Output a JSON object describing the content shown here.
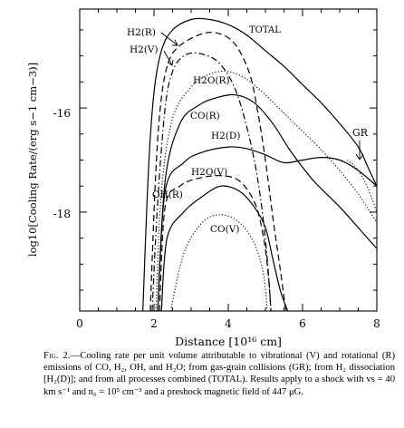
{
  "chart_data": {
    "type": "line",
    "ylabel": "log10[Cooling Rate/(erg s−1 cm−3)]",
    "xlabel": "Distance [10¹⁶ cm]",
    "xlim": [
      0,
      8
    ],
    "ylim": [
      -19.9,
      -14.1
    ],
    "x_ticks": [
      0,
      2,
      4,
      6,
      8
    ],
    "y_ticks": [
      -16,
      -18
    ],
    "x_tick_labels": [
      "0",
      "2",
      "4",
      "6",
      "8"
    ],
    "y_tick_labels": [
      "-16",
      "-18"
    ],
    "series": [
      {
        "name": "TOTAL",
        "style": "solid",
        "points": [
          [
            1.7,
            -19.9
          ],
          [
            1.85,
            -17.2
          ],
          [
            2.0,
            -15.7
          ],
          [
            2.2,
            -14.9
          ],
          [
            2.5,
            -14.5
          ],
          [
            3.0,
            -14.3
          ],
          [
            3.5,
            -14.3
          ],
          [
            4.0,
            -14.4
          ],
          [
            4.5,
            -14.6
          ],
          [
            5.0,
            -14.9
          ],
          [
            5.5,
            -15.2
          ],
          [
            6.0,
            -15.55
          ],
          [
            6.5,
            -15.9
          ],
          [
            7.0,
            -16.3
          ],
          [
            7.5,
            -16.75
          ],
          [
            7.8,
            -17.2
          ],
          [
            8.0,
            -17.5
          ]
        ]
      },
      {
        "name": "H2(R)",
        "style": "dashed",
        "points": [
          [
            1.9,
            -19.9
          ],
          [
            2.05,
            -17.2
          ],
          [
            2.2,
            -15.8
          ],
          [
            2.4,
            -15.1
          ],
          [
            2.7,
            -14.8
          ],
          [
            3.2,
            -14.6
          ],
          [
            3.6,
            -14.55
          ],
          [
            4.0,
            -14.65
          ],
          [
            4.3,
            -14.9
          ],
          [
            4.6,
            -15.4
          ],
          [
            4.8,
            -16.1
          ],
          [
            5.0,
            -17.0
          ],
          [
            5.2,
            -18.1
          ],
          [
            5.4,
            -19.1
          ],
          [
            5.55,
            -19.9
          ]
        ]
      },
      {
        "name": "H2(V)",
        "style": "dash-dot",
        "points": [
          [
            1.95,
            -19.9
          ],
          [
            2.1,
            -17.8
          ],
          [
            2.3,
            -16.0
          ],
          [
            2.5,
            -15.3
          ],
          [
            2.8,
            -15.0
          ],
          [
            3.2,
            -14.95
          ],
          [
            3.7,
            -15.1
          ],
          [
            4.1,
            -15.5
          ],
          [
            4.4,
            -16.1
          ],
          [
            4.7,
            -17.0
          ],
          [
            4.9,
            -17.9
          ],
          [
            5.05,
            -18.9
          ],
          [
            5.15,
            -19.9
          ]
        ]
      },
      {
        "name": "H2O(R)",
        "style": "dotted",
        "points": [
          [
            2.05,
            -19.9
          ],
          [
            2.2,
            -17.6
          ],
          [
            2.5,
            -16.2
          ],
          [
            3.0,
            -15.6
          ],
          [
            3.5,
            -15.35
          ],
          [
            4.0,
            -15.3
          ],
          [
            4.5,
            -15.45
          ],
          [
            5.0,
            -15.75
          ],
          [
            5.5,
            -16.1
          ],
          [
            6.0,
            -16.45
          ],
          [
            6.5,
            -16.8
          ],
          [
            7.0,
            -17.2
          ],
          [
            7.5,
            -17.65
          ],
          [
            8.0,
            -18.2
          ]
        ]
      },
      {
        "name": "CO(R)",
        "style": "solid",
        "points": [
          [
            2.1,
            -19.9
          ],
          [
            2.3,
            -17.4
          ],
          [
            2.7,
            -16.3
          ],
          [
            3.2,
            -15.95
          ],
          [
            3.7,
            -15.8
          ],
          [
            4.2,
            -15.75
          ],
          [
            4.7,
            -15.9
          ],
          [
            5.2,
            -16.3
          ],
          [
            5.7,
            -16.85
          ],
          [
            6.3,
            -17.4
          ],
          [
            7.0,
            -17.9
          ],
          [
            7.5,
            -18.3
          ],
          [
            8.0,
            -18.7
          ]
        ]
      },
      {
        "name": "H2(D)",
        "style": "solid",
        "points": [
          [
            2.1,
            -19.9
          ],
          [
            2.3,
            -17.6
          ],
          [
            2.8,
            -17.05
          ],
          [
            3.3,
            -16.85
          ],
          [
            4.0,
            -16.75
          ],
          [
            4.5,
            -16.78
          ],
          [
            5.0,
            -16.9
          ],
          [
            5.5,
            -17.05
          ],
          [
            6.0,
            -17.0
          ],
          [
            6.5,
            -16.95
          ],
          [
            7.0,
            -17.0
          ],
          [
            7.5,
            -17.2
          ],
          [
            8.0,
            -17.5
          ]
        ]
      },
      {
        "name": "GR",
        "style": "dotted",
        "points": [
          [
            7.2,
            -17.0
          ],
          [
            7.45,
            -17.15
          ],
          [
            7.7,
            -17.45
          ],
          [
            7.9,
            -17.8
          ],
          [
            8.0,
            -18.0
          ]
        ]
      },
      {
        "name": "H2O(V)",
        "style": "dashed",
        "points": [
          [
            2.15,
            -19.9
          ],
          [
            2.3,
            -17.9
          ],
          [
            2.7,
            -17.5
          ],
          [
            3.2,
            -17.35
          ],
          [
            3.8,
            -17.3
          ],
          [
            4.3,
            -17.4
          ],
          [
            4.7,
            -17.8
          ],
          [
            4.9,
            -18.3
          ],
          [
            5.05,
            -19.0
          ],
          [
            5.15,
            -19.9
          ]
        ]
      },
      {
        "name": "OH(R)",
        "style": "solid",
        "points": [
          [
            2.2,
            -19.9
          ],
          [
            2.35,
            -18.5
          ],
          [
            2.8,
            -18.0
          ],
          [
            3.3,
            -17.7
          ],
          [
            3.8,
            -17.5
          ],
          [
            4.3,
            -17.6
          ],
          [
            4.7,
            -17.9
          ],
          [
            5.0,
            -18.3
          ],
          [
            5.2,
            -18.9
          ],
          [
            5.4,
            -19.5
          ],
          [
            5.6,
            -19.9
          ]
        ]
      },
      {
        "name": "CO(V)",
        "style": "dotted",
        "points": [
          [
            2.45,
            -19.9
          ],
          [
            2.8,
            -18.8
          ],
          [
            3.3,
            -18.2
          ],
          [
            3.8,
            -18.05
          ],
          [
            4.3,
            -18.2
          ],
          [
            4.7,
            -18.6
          ],
          [
            4.95,
            -19.2
          ],
          [
            5.05,
            -19.9
          ]
        ]
      }
    ],
    "labels": [
      "TOTAL",
      "H2(R)",
      "H2(V)",
      "H2O(R)",
      "CO(R)",
      "H2(D)",
      "H2O(V)",
      "OH(R)",
      "CO(V)",
      "GR"
    ]
  },
  "caption": {
    "lead": "Fig. 2.",
    "text": "—Cooling rate per unit volume attributable to vibrational (V) and rotational (R) emissions of CO, H₂, OH, and H₂O; from gas-grain collisions (GR); from H₂ dissociation [H₂(D)]; and from all processes combined (TOTAL). Results apply to a shock with vs = 40 km s⁻¹ and n₀ = 10⁵ cm⁻³ and a preshock magnetic field of 447 μG."
  }
}
